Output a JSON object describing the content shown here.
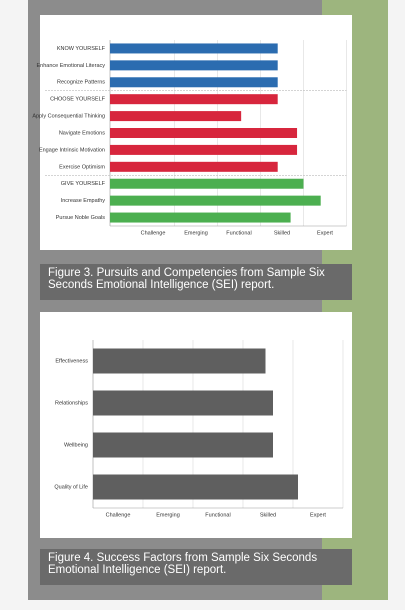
{
  "chart_data": [
    {
      "type": "barh",
      "categories": [
        "KNOW YOURSELF",
        "Enhance Emotional Literacy",
        "Recognize Patterns",
        "CHOOSE YOURSELF",
        "Apply Consequential Thinking",
        "Navigate Emotions",
        "Engage Intrinsic Motivation",
        "Exercise Optimism",
        "GIVE YOURSELF",
        "Increase Empathy",
        "Pursue Noble Goals"
      ],
      "values": [
        3.9,
        3.9,
        3.9,
        3.9,
        3.05,
        4.35,
        4.35,
        3.9,
        4.5,
        4.9,
        4.2
      ],
      "colors": [
        "#2b6cb0",
        "#2b6cb0",
        "#2b6cb0",
        "#d7263d",
        "#d7263d",
        "#d7263d",
        "#d7263d",
        "#d7263d",
        "#4caf50",
        "#4caf50",
        "#4caf50"
      ],
      "xlim": [
        0,
        5.5
      ],
      "xticks": [
        {
          "value": 1,
          "label": "Challenge"
        },
        {
          "value": 2,
          "label": "Emerging"
        },
        {
          "value": 3,
          "label": "Functional"
        },
        {
          "value": 4,
          "label": "Skilled"
        },
        {
          "value": 5,
          "label": "Expert"
        }
      ],
      "grid": true,
      "caption": "Figure 3. Pursuits and Competencies from Sample Six Seconds Emotional Intelligence (SEI) report."
    },
    {
      "type": "barh",
      "categories": [
        "Effectiveness",
        "Relationships",
        "Wellbeing",
        "Quality of Life"
      ],
      "values": [
        3.95,
        4.1,
        4.1,
        4.6
      ],
      "colors": [
        "#5f5f5f",
        "#5f5f5f",
        "#5f5f5f",
        "#5f5f5f"
      ],
      "xlim": [
        0.5,
        5.5
      ],
      "xticks": [
        {
          "value": 1,
          "label": "Challenge"
        },
        {
          "value": 2,
          "label": "Emerging"
        },
        {
          "value": 3,
          "label": "Functional"
        },
        {
          "value": 4,
          "label": "Skilled"
        },
        {
          "value": 5,
          "label": "Expert"
        }
      ],
      "grid": true,
      "caption": "Figure 4. Success Factors from Sample Six Seconds Emotional Intelligence (SEI) report."
    }
  ]
}
